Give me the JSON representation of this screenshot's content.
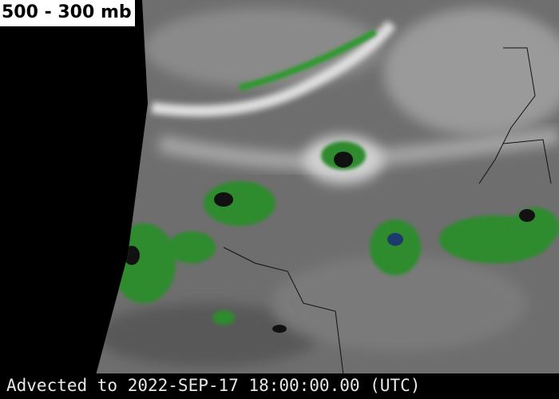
{
  "header": {
    "title": "500 - 300 mb"
  },
  "footer": {
    "timestamp": "Advected to 2022-SEP-17 18:00:00.00 (UTC)"
  }
}
